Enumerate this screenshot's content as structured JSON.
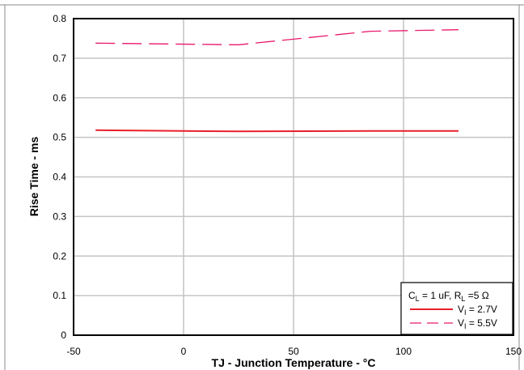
{
  "chart_data": {
    "type": "line",
    "title": "",
    "xlabel": "TJ - Junction Temperature - °C",
    "ylabel": "Rise Time - ms",
    "xlim": [
      -50,
      150
    ],
    "ylim": [
      0,
      0.8
    ],
    "x_ticks": [
      "-50",
      "0",
      "50",
      "100",
      "150"
    ],
    "y_ticks": [
      "0",
      "0.1",
      "0.2",
      "0.3",
      "0.4",
      "0.5",
      "0.6",
      "0.7",
      "0.8"
    ],
    "grid": true,
    "legend_position": "bottom-right",
    "condition": {
      "text_parts": [
        "C",
        "L",
        " = 1 uF, R",
        "L",
        " =5 Ω"
      ]
    },
    "series": [
      {
        "name_main": "V",
        "name_sub": "I",
        "name_rest": " = 2.7V",
        "color": "#e8202a",
        "style": "solid",
        "x": [
          -40,
          25,
          85,
          125
        ],
        "y": [
          0.518,
          0.515,
          0.516,
          0.516
        ]
      },
      {
        "name_main": "V",
        "name_sub": "I",
        "name_rest": " = 5.5V",
        "color": "#e8196e",
        "style": "dashed",
        "x": [
          -40,
          25,
          85,
          125
        ],
        "y": [
          0.738,
          0.734,
          0.768,
          0.772
        ]
      }
    ]
  }
}
